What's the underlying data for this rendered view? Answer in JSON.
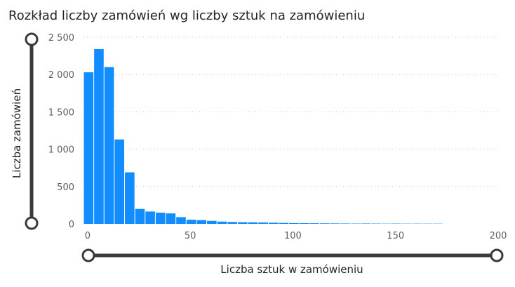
{
  "chart_data": {
    "type": "bar",
    "title": "Rozkład liczby zamówień wg liczby sztuk na zamówieniu",
    "xlabel": "Liczba sztuk w zamówieniu",
    "ylabel": "Liczba zamówień",
    "bin_width": 5,
    "bins_start": [
      -2,
      3,
      8,
      13,
      18,
      23,
      28,
      33,
      38,
      43,
      48,
      53,
      58,
      63,
      68,
      73,
      78,
      83,
      88,
      93,
      98,
      103,
      108,
      113,
      118,
      123,
      128,
      133,
      138,
      143,
      148,
      153,
      158,
      163,
      168
    ],
    "values": [
      2030,
      2340,
      2100,
      1130,
      690,
      200,
      165,
      150,
      140,
      90,
      55,
      50,
      40,
      30,
      25,
      22,
      20,
      18,
      15,
      12,
      10,
      9,
      8,
      7,
      6,
      5,
      4,
      5,
      4,
      3,
      4,
      3,
      3,
      3,
      3
    ],
    "xlim": [
      -2,
      200
    ],
    "ylim": [
      0,
      2500
    ],
    "x_ticks": [
      0,
      50,
      100,
      150,
      200
    ],
    "x_tick_labels": [
      "0",
      "50",
      "100",
      "150",
      "200"
    ],
    "y_ticks": [
      0,
      500,
      1000,
      1500,
      2000,
      2500
    ],
    "y_tick_labels": [
      "0",
      "500",
      "1 000",
      "1 500",
      "2 000",
      "2 500"
    ],
    "grid": true,
    "bar_color": "#118DFF",
    "slider_color": "#3b3a39"
  }
}
